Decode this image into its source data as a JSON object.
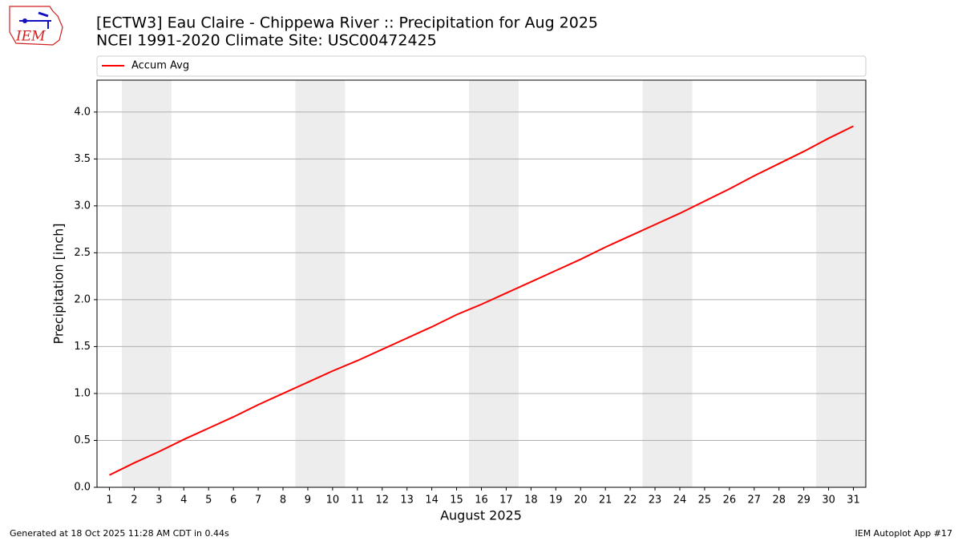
{
  "logo": "IEM",
  "chart_data": {
    "type": "line",
    "title": "[ECTW3] Eau Claire - Chippewa River :: Precipitation for Aug 2025",
    "subtitle": "NCEI 1991-2020 Climate Site: USC00472425",
    "x_label": "August 2025",
    "y_label": "Precipitation [inch]",
    "x": [
      1,
      2,
      3,
      4,
      5,
      6,
      7,
      8,
      9,
      10,
      11,
      12,
      13,
      14,
      15,
      16,
      17,
      18,
      19,
      20,
      21,
      22,
      23,
      24,
      25,
      26,
      27,
      28,
      29,
      30,
      31
    ],
    "series": [
      {
        "name": "Accum Avg",
        "color": "#ff0000",
        "values": [
          0.13,
          0.26,
          0.38,
          0.51,
          0.63,
          0.75,
          0.88,
          1.0,
          1.12,
          1.24,
          1.35,
          1.47,
          1.59,
          1.71,
          1.84,
          1.95,
          2.07,
          2.19,
          2.31,
          2.43,
          2.56,
          2.68,
          2.8,
          2.92,
          3.05,
          3.18,
          3.32,
          3.45,
          3.58,
          3.72,
          3.85
        ]
      }
    ],
    "shaded_spans": [
      [
        1.5,
        3.5
      ],
      [
        8.5,
        10.5
      ],
      [
        15.5,
        17.5
      ],
      [
        22.5,
        24.5
      ],
      [
        29.5,
        31.5
      ]
    ],
    "shade_color": "#ededed",
    "xlim": [
      0.5,
      31.5
    ],
    "xticks": [
      1,
      2,
      3,
      4,
      5,
      6,
      7,
      8,
      9,
      10,
      11,
      12,
      13,
      14,
      15,
      16,
      17,
      18,
      19,
      20,
      21,
      22,
      23,
      24,
      25,
      26,
      27,
      28,
      29,
      30,
      31
    ],
    "ylim": [
      0,
      4.34
    ],
    "yticks": [
      {
        "value": 0,
        "label": "0.0"
      },
      0.5,
      {
        "value": 1,
        "label": "1.0"
      },
      1.5,
      {
        "value": 2,
        "label": "2.0"
      },
      2.5,
      {
        "value": 3,
        "label": "3.0"
      },
      3.5,
      {
        "value": 4,
        "label": "4.0"
      }
    ],
    "grid": true,
    "legend": "top",
    "footer_left": "Generated at 18 Oct 2025 11:28 AM CDT in 0.44s",
    "footer_right": "IEM Autoplot App #17"
  }
}
